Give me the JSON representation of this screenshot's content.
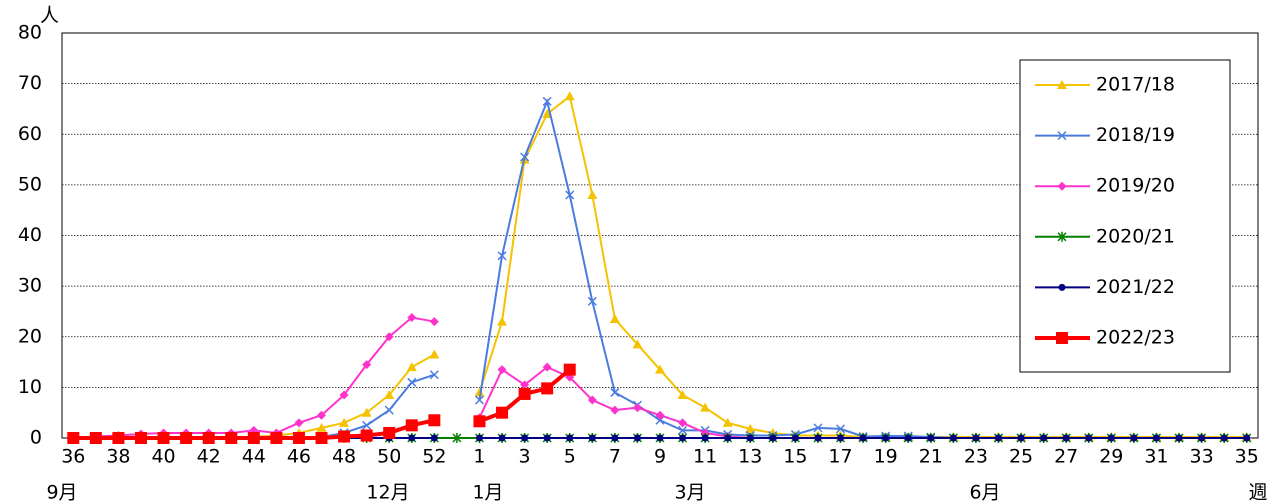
{
  "chart_data": {
    "type": "line",
    "x_label": "週",
    "y_label": "人",
    "months": [
      "9月",
      "12月",
      "1月",
      "3月",
      "6月"
    ],
    "categories": [
      "36",
      null,
      "38",
      null,
      "40",
      null,
      "42",
      null,
      "44",
      null,
      "46",
      null,
      "48",
      null,
      "50",
      null,
      "52",
      null,
      "1",
      null,
      "3",
      null,
      "5",
      null,
      "7",
      null,
      "9",
      null,
      "11",
      null,
      "13",
      null,
      "15",
      null,
      "17",
      null,
      "19",
      null,
      "21",
      null,
      "23",
      null,
      "25",
      null,
      "27",
      null,
      "29",
      null,
      "31",
      null,
      "33",
      null,
      "35"
    ],
    "ylim": [
      0,
      80
    ],
    "yticks": [
      0,
      10,
      20,
      30,
      40,
      50,
      60,
      70,
      80
    ],
    "grid": true,
    "legend": "upper right",
    "series": [
      {
        "name": "2017/18",
        "color": "#F5C200",
        "marker": "triangle",
        "values": [
          0.2,
          0.2,
          0.2,
          0.2,
          0.2,
          0.2,
          0.2,
          0.2,
          0.2,
          0.5,
          1,
          2,
          3,
          5,
          8.5,
          14,
          16.5,
          null,
          9,
          23,
          55,
          64,
          67.5,
          48,
          23.5,
          18.5,
          13.5,
          8.5,
          6,
          3,
          1.8,
          1,
          0.5,
          0.5,
          0.5,
          0.2,
          0.2,
          0.2,
          0.2,
          0.2,
          0.2,
          0.2,
          0.2,
          0.2,
          0.2,
          0.2,
          0.2,
          0.2,
          0.2,
          0.2,
          0.2,
          0.2,
          0.2
        ]
      },
      {
        "name": "2018/19",
        "color": "#4A7BE0",
        "marker": "x",
        "values": [
          0.2,
          0.2,
          0.2,
          0.2,
          0.2,
          0.2,
          0.2,
          0.2,
          0.2,
          0.2,
          0.2,
          0.2,
          1,
          2.5,
          5.5,
          11,
          12.5,
          null,
          7.5,
          36,
          55.5,
          66.5,
          48,
          27,
          9,
          6.5,
          3.5,
          1.5,
          1.5,
          0.7,
          0.5,
          0.5,
          0.7,
          2,
          1.8,
          0.3,
          0.4,
          0.4,
          0.2,
          0,
          0,
          0,
          0,
          0,
          0,
          0,
          0,
          0,
          0,
          0,
          0,
          0,
          0
        ]
      },
      {
        "name": "2019/20",
        "color": "#FF33CC",
        "marker": "diamond",
        "values": [
          0,
          0.3,
          0.5,
          0.8,
          1,
          1,
          1,
          1,
          1.5,
          1,
          3,
          4.5,
          8.5,
          14.5,
          20,
          23.8,
          23,
          null,
          4,
          13.5,
          10.5,
          14,
          12,
          7.5,
          5.5,
          6,
          4.5,
          3,
          1,
          0.3,
          0,
          0,
          0,
          0,
          0,
          0,
          0,
          0,
          0,
          0,
          0,
          0,
          0,
          0,
          0,
          0,
          0,
          0,
          0,
          0,
          0,
          0,
          0
        ]
      },
      {
        "name": "2020/21",
        "color": "#008000",
        "marker": "star",
        "values": [
          0,
          0,
          0,
          0,
          0,
          0,
          0,
          0,
          0,
          0,
          0,
          0,
          0,
          0,
          0,
          0,
          0,
          0,
          0,
          0,
          0,
          0,
          0,
          0,
          0,
          0,
          0,
          0,
          0,
          0,
          0,
          0,
          0,
          0,
          0,
          0,
          0,
          0,
          0,
          0,
          0,
          0,
          0,
          0,
          0,
          0,
          0,
          0,
          0,
          0,
          0,
          0,
          0
        ]
      },
      {
        "name": "2021/22",
        "color": "#000080",
        "marker": "circle",
        "values": [
          0,
          0,
          0,
          0,
          0,
          0,
          0,
          0,
          0,
          0,
          0,
          0,
          0,
          0,
          0,
          0,
          0,
          null,
          0,
          0,
          0,
          0,
          0,
          0,
          0,
          0,
          0,
          0,
          0,
          0,
          0,
          0,
          0,
          0,
          0,
          0,
          0,
          0,
          0,
          0,
          0,
          0,
          0,
          0,
          0,
          0,
          0,
          0,
          0,
          0,
          0,
          0,
          0
        ]
      },
      {
        "name": "2022/23",
        "color": "#FF0000",
        "marker": "square",
        "values": [
          0,
          0,
          0,
          0,
          0,
          0,
          0,
          0,
          0,
          0,
          0,
          0,
          0.3,
          0.5,
          1,
          2.5,
          3.5,
          null,
          3.3,
          5,
          8.7,
          9.8,
          13.5,
          null,
          null,
          null,
          null,
          null,
          null,
          null,
          null,
          null,
          null,
          null,
          null,
          null,
          null,
          null,
          null,
          null,
          null,
          null,
          null,
          null,
          null,
          null,
          null,
          null,
          null,
          null,
          null,
          null,
          null
        ]
      }
    ]
  }
}
